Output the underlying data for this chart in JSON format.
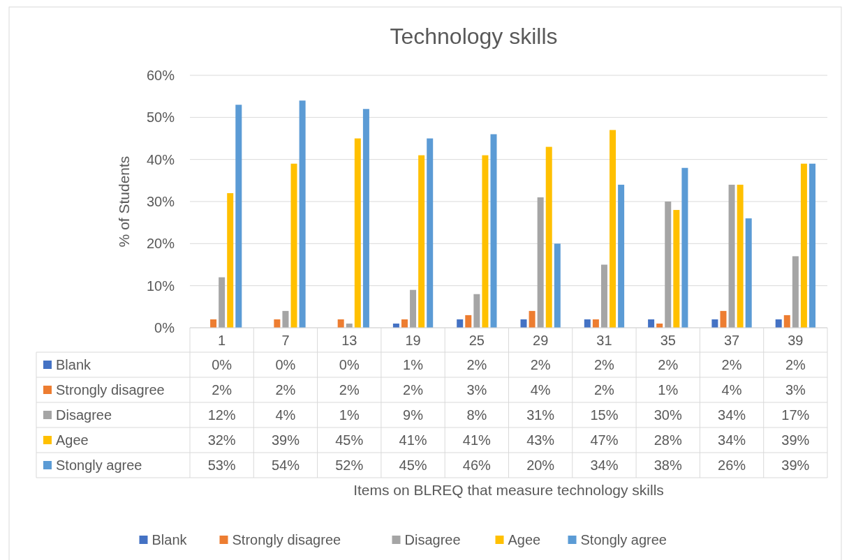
{
  "chart_data": {
    "type": "bar",
    "title": "Technology skills",
    "annotations": [
      "Items on BLREQ that measure technology skills"
    ],
    "ylabel": "% of Students",
    "categories": [
      "1",
      "7",
      "13",
      "19",
      "25",
      "29",
      "31",
      "35",
      "37",
      "39"
    ],
    "series": [
      {
        "name": "Blank",
        "color": "#4472c4",
        "values": [
          0,
          0,
          0,
          1,
          2,
          2,
          2,
          2,
          2,
          2
        ],
        "value_labels": [
          "0%",
          "0%",
          "0%",
          "1%",
          "2%",
          "2%",
          "2%",
          "2%",
          "2%",
          "2%"
        ]
      },
      {
        "name": "Strongly disagree",
        "color": "#ed7d31",
        "values": [
          2,
          2,
          2,
          2,
          3,
          4,
          2,
          1,
          4,
          3
        ],
        "value_labels": [
          "2%",
          "2%",
          "2%",
          "2%",
          "3%",
          "4%",
          "2%",
          "1%",
          "4%",
          "3%"
        ]
      },
      {
        "name": "Disagree",
        "color": "#a5a5a5",
        "values": [
          12,
          4,
          1,
          9,
          8,
          31,
          15,
          30,
          34,
          17
        ],
        "value_labels": [
          "12%",
          "4%",
          "1%",
          "9%",
          "8%",
          "31%",
          "15%",
          "30%",
          "34%",
          "17%"
        ]
      },
      {
        "name": "Agee",
        "color": "#ffc000",
        "values": [
          32,
          39,
          45,
          41,
          41,
          43,
          47,
          28,
          34,
          39
        ],
        "value_labels": [
          "32%",
          "39%",
          "45%",
          "41%",
          "41%",
          "43%",
          "47%",
          "28%",
          "34%",
          "39%"
        ]
      },
      {
        "name": "Stongly agree",
        "color": "#5b9bd5",
        "values": [
          53,
          54,
          52,
          45,
          46,
          20,
          34,
          38,
          26,
          39
        ],
        "value_labels": [
          "53%",
          "54%",
          "52%",
          "45%",
          "46%",
          "20%",
          "34%",
          "38%",
          "26%",
          "39%"
        ]
      }
    ],
    "ylim": [
      0,
      60
    ],
    "yticks": [
      {
        "value": 0,
        "label": "0%"
      },
      {
        "value": 10,
        "label": "10%"
      },
      {
        "value": 20,
        "label": "20%"
      },
      {
        "value": 30,
        "label": "30%"
      },
      {
        "value": 40,
        "label": "40%"
      },
      {
        "value": 50,
        "label": "50%"
      },
      {
        "value": 60,
        "label": "60%"
      }
    ],
    "grid": "y",
    "legend": "bottom"
  }
}
